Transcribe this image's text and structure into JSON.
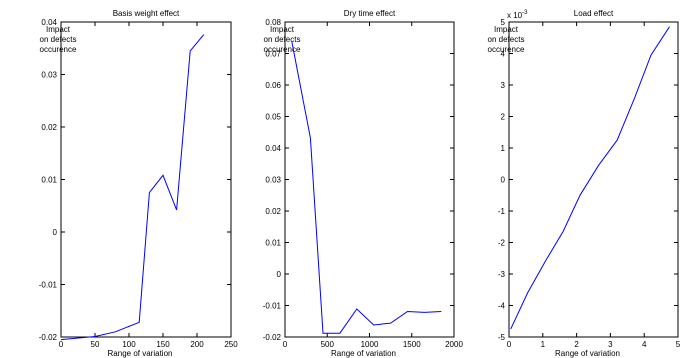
{
  "chart_data": [
    {
      "type": "line",
      "title": "Basis weight effect",
      "ylabel_lines": [
        "Impact",
        "on defects",
        "occurence"
      ],
      "xlabel": "Range of variation",
      "xlim": [
        0,
        250
      ],
      "ylim": [
        -0.02,
        0.04
      ],
      "xticks": [
        0,
        50,
        100,
        150,
        200,
        250
      ],
      "yticks": [
        -0.02,
        -0.01,
        0,
        0.01,
        0.02,
        0.03,
        0.04
      ],
      "xtick_labels": [
        "0",
        "50",
        "100",
        "150",
        "200",
        "250"
      ],
      "ytick_labels": [
        "-0.02",
        "-0.01",
        "0",
        "0.01",
        "0.02",
        "0.03",
        "0.04"
      ],
      "exponent_label": "",
      "series_color": "#0000ff",
      "x": [
        0,
        50,
        80,
        115,
        130,
        150,
        170,
        190,
        210
      ],
      "y": [
        -0.0205,
        -0.0199,
        -0.019,
        -0.0172,
        0.0075,
        0.0108,
        0.0042,
        0.0345,
        0.0376
      ]
    },
    {
      "type": "line",
      "title": "Dry time effect",
      "ylabel_lines": [
        "Impact",
        "on defects",
        "occurence"
      ],
      "xlabel": "Range of variation",
      "xlim": [
        0,
        2000
      ],
      "ylim": [
        -0.02,
        0.08
      ],
      "xticks": [
        0,
        500,
        1000,
        1500,
        2000
      ],
      "yticks": [
        -0.02,
        -0.01,
        0,
        0.01,
        0.02,
        0.03,
        0.04,
        0.05,
        0.06,
        0.07,
        0.08
      ],
      "xtick_labels": [
        "0",
        "500",
        "1000",
        "1500",
        "2000"
      ],
      "ytick_labels": [
        "-0.02",
        "-0.01",
        "0",
        "0.01",
        "0.02",
        "0.03",
        "0.04",
        "0.05",
        "0.06",
        "0.07",
        "0.08"
      ],
      "exponent_label": "",
      "series_color": "#0000ff",
      "x": [
        80,
        300,
        450,
        650,
        850,
        1050,
        1250,
        1450,
        1650,
        1850
      ],
      "y": [
        0.0738,
        0.0432,
        -0.0188,
        -0.0188,
        -0.0111,
        -0.0162,
        -0.0156,
        -0.0119,
        -0.0122,
        -0.0119
      ]
    },
    {
      "type": "line",
      "title": "Load effect",
      "ylabel_lines": [
        "Impact",
        "on defects",
        "occurence"
      ],
      "xlabel": "Range of variation",
      "xlim": [
        0,
        5
      ],
      "ylim": [
        -5,
        5
      ],
      "xticks": [
        0,
        1,
        2,
        3,
        4,
        5
      ],
      "yticks": [
        -5,
        -4,
        -3,
        -2,
        -1,
        0,
        1,
        2,
        3,
        4,
        5
      ],
      "xtick_labels": [
        "0",
        "1",
        "2",
        "3",
        "4",
        "5"
      ],
      "ytick_labels": [
        "-5",
        "-4",
        "-3",
        "-2",
        "-1",
        "0",
        "1",
        "2",
        "3",
        "4",
        "5"
      ],
      "exponent_label": "x 10-3",
      "series_color": "#0000ff",
      "x": [
        0.05,
        0.55,
        1.1,
        1.6,
        2.1,
        2.65,
        3.2,
        3.7,
        4.2,
        4.75
      ],
      "y": [
        -4.75,
        -3.6,
        -2.55,
        -1.65,
        -0.5,
        0.45,
        1.25,
        2.55,
        3.95,
        4.85
      ]
    }
  ]
}
